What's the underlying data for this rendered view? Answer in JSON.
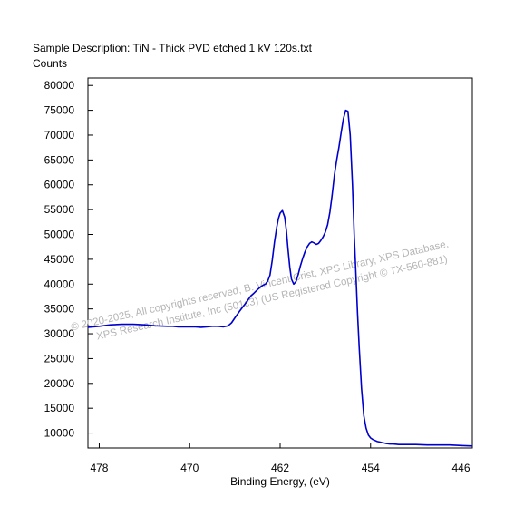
{
  "chart_data": {
    "type": "line",
    "title": "Sample Description:  TiN - Thick PVD etched 1 kV 120s.txt",
    "ylabel": "Counts",
    "xlabel": "Binding Energy, (eV)",
    "xlim": [
      479,
      445
    ],
    "ylim": [
      7000,
      81500
    ],
    "x_ticks": [
      478,
      470,
      462,
      454,
      446
    ],
    "y_ticks": [
      10000,
      15000,
      20000,
      25000,
      30000,
      35000,
      40000,
      45000,
      50000,
      55000,
      60000,
      65000,
      70000,
      75000,
      80000
    ],
    "grid": false,
    "series": [
      {
        "color": "#0000cc",
        "x": [
          479.0,
          478.0,
          477.0,
          476.0,
          475.0,
          474.0,
          473.0,
          472.0,
          471.5,
          471.0,
          470.5,
          470.0,
          469.5,
          469.0,
          468.5,
          468.0,
          467.5,
          467.0,
          466.6,
          466.3,
          466.0,
          465.6,
          465.0,
          464.6,
          464.3,
          464.0,
          463.7,
          463.5,
          463.3,
          463.1,
          462.9,
          462.7,
          462.5,
          462.3,
          462.15,
          462.0,
          461.8,
          461.6,
          461.45,
          461.3,
          461.15,
          461.0,
          460.8,
          460.6,
          460.4,
          460.2,
          460.0,
          459.8,
          459.6,
          459.4,
          459.2,
          459.0,
          458.8,
          458.6,
          458.4,
          458.2,
          458.0,
          457.8,
          457.6,
          457.4,
          457.2,
          457.0,
          456.8,
          456.6,
          456.4,
          456.2,
          456.0,
          455.8,
          455.6,
          455.45,
          455.3,
          455.15,
          455.0,
          454.8,
          454.6,
          454.4,
          454.2,
          454.0,
          453.8,
          453.6,
          453.4,
          453.2,
          453.0,
          452.8,
          452.6,
          452.3,
          452.0,
          451.5,
          451.0,
          450.0,
          449.0,
          448.0,
          447.0,
          446.0,
          445.0
        ],
        "y": [
          31300,
          31500,
          31800,
          31900,
          31900,
          31800,
          31600,
          31500,
          31500,
          31400,
          31400,
          31400,
          31400,
          31300,
          31400,
          31500,
          31500,
          31400,
          31600,
          32200,
          33200,
          34500,
          36300,
          37600,
          38200,
          38900,
          39500,
          39800,
          40000,
          40600,
          41800,
          44800,
          48500,
          51500,
          53200,
          54300,
          54800,
          53500,
          50800,
          47000,
          43500,
          41000,
          40000,
          40500,
          42000,
          43700,
          45200,
          46500,
          47500,
          48200,
          48500,
          48300,
          48000,
          48200,
          48800,
          49500,
          50500,
          52000,
          54500,
          58000,
          62000,
          65000,
          67500,
          70500,
          73300,
          75000,
          74800,
          70000,
          60000,
          50000,
          42000,
          34000,
          27000,
          19000,
          13500,
          11000,
          9600,
          9000,
          8700,
          8500,
          8300,
          8200,
          8100,
          8000,
          7900,
          7800,
          7800,
          7700,
          7700,
          7700,
          7600,
          7600,
          7600,
          7500,
          7400
        ]
      }
    ]
  },
  "watermark": {
    "line1": "© 2020-2025,  All copyrights reserved,   B. Vincent Crist, XPS Library, XPS Database,",
    "line2": "XPS Research Institute, Inc (501c3)   (US Registered Copyright © TX-560-881)"
  }
}
